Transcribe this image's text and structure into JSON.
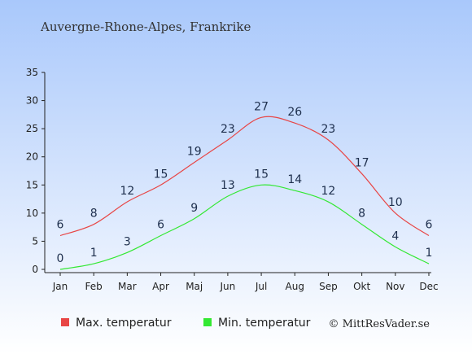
{
  "chart_data": {
    "type": "line",
    "title": "Auvergne-Rhone-Alpes, Frankrike",
    "categories": [
      "Jan",
      "Feb",
      "Mar",
      "Apr",
      "Maj",
      "Jun",
      "Jul",
      "Aug",
      "Sep",
      "Okt",
      "Nov",
      "Dec"
    ],
    "series": [
      {
        "name": "Max. temperatur",
        "color": "#e84545",
        "values": [
          6,
          8,
          12,
          15,
          19,
          23,
          27,
          26,
          23,
          17,
          10,
          6
        ]
      },
      {
        "name": "Min. temperatur",
        "color": "#33e833",
        "values": [
          0,
          1,
          3,
          6,
          9,
          13,
          15,
          14,
          12,
          8,
          4,
          1
        ]
      }
    ],
    "yticks": [
      "0",
      "5",
      "10",
      "15",
      "20",
      "25",
      "30",
      "35"
    ],
    "ylim": [
      0,
      35
    ],
    "grid": false,
    "legend_position": "bottom-left",
    "copyright": "© MittResVader.se",
    "colors": {
      "bg_top": "#a9c8fb",
      "bg_bottom": "#ffffff",
      "label": "#1e2f4d"
    }
  }
}
